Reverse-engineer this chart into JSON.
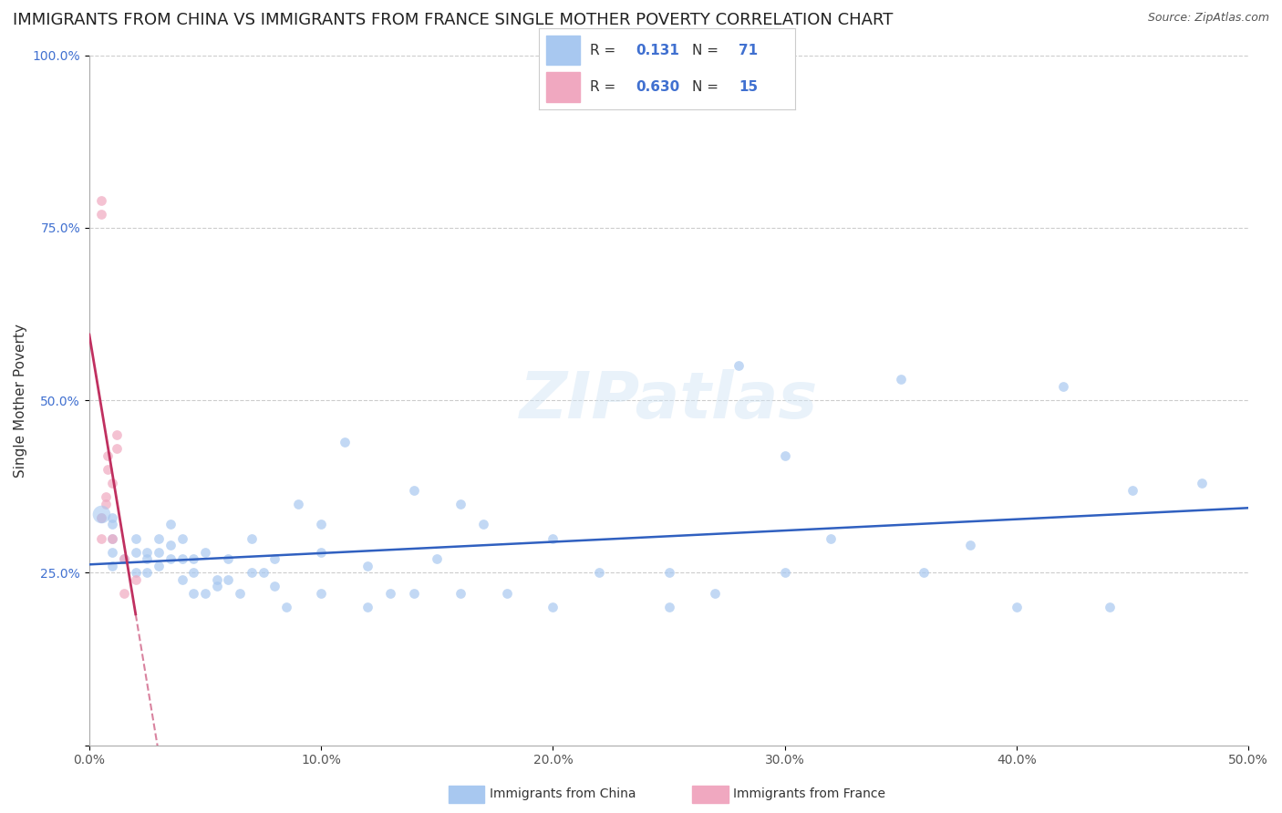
{
  "title": "IMMIGRANTS FROM CHINA VS IMMIGRANTS FROM FRANCE SINGLE MOTHER POVERTY CORRELATION CHART",
  "source": "Source: ZipAtlas.com",
  "xlabel_china": "Immigrants from China",
  "xlabel_france": "Immigrants from France",
  "ylabel": "Single Mother Poverty",
  "xlim": [
    0,
    0.5
  ],
  "ylim": [
    0,
    1.0
  ],
  "R_china": 0.131,
  "N_china": 71,
  "R_france": 0.63,
  "N_france": 15,
  "china_color": "#a8c8f0",
  "france_color": "#f0a8c0",
  "trendline_china_color": "#3060c0",
  "trendline_france_color": "#c03060",
  "china_scatter": [
    [
      0.01,
      0.32
    ],
    [
      0.01,
      0.28
    ],
    [
      0.01,
      0.26
    ],
    [
      0.01,
      0.3
    ],
    [
      0.01,
      0.33
    ],
    [
      0.015,
      0.27
    ],
    [
      0.02,
      0.28
    ],
    [
      0.02,
      0.25
    ],
    [
      0.02,
      0.3
    ],
    [
      0.025,
      0.25
    ],
    [
      0.025,
      0.28
    ],
    [
      0.025,
      0.27
    ],
    [
      0.03,
      0.26
    ],
    [
      0.03,
      0.3
    ],
    [
      0.03,
      0.28
    ],
    [
      0.035,
      0.29
    ],
    [
      0.035,
      0.27
    ],
    [
      0.035,
      0.32
    ],
    [
      0.04,
      0.27
    ],
    [
      0.04,
      0.3
    ],
    [
      0.04,
      0.24
    ],
    [
      0.045,
      0.27
    ],
    [
      0.045,
      0.22
    ],
    [
      0.045,
      0.25
    ],
    [
      0.05,
      0.28
    ],
    [
      0.05,
      0.22
    ],
    [
      0.055,
      0.24
    ],
    [
      0.055,
      0.23
    ],
    [
      0.06,
      0.27
    ],
    [
      0.06,
      0.24
    ],
    [
      0.065,
      0.22
    ],
    [
      0.07,
      0.3
    ],
    [
      0.07,
      0.25
    ],
    [
      0.075,
      0.25
    ],
    [
      0.08,
      0.23
    ],
    [
      0.08,
      0.27
    ],
    [
      0.085,
      0.2
    ],
    [
      0.09,
      0.35
    ],
    [
      0.1,
      0.22
    ],
    [
      0.1,
      0.28
    ],
    [
      0.1,
      0.32
    ],
    [
      0.11,
      0.44
    ],
    [
      0.12,
      0.26
    ],
    [
      0.12,
      0.2
    ],
    [
      0.13,
      0.22
    ],
    [
      0.14,
      0.37
    ],
    [
      0.14,
      0.22
    ],
    [
      0.15,
      0.27
    ],
    [
      0.16,
      0.35
    ],
    [
      0.16,
      0.22
    ],
    [
      0.17,
      0.32
    ],
    [
      0.18,
      0.22
    ],
    [
      0.2,
      0.2
    ],
    [
      0.2,
      0.3
    ],
    [
      0.22,
      0.25
    ],
    [
      0.25,
      0.2
    ],
    [
      0.25,
      0.25
    ],
    [
      0.27,
      0.22
    ],
    [
      0.28,
      0.55
    ],
    [
      0.3,
      0.42
    ],
    [
      0.3,
      0.25
    ],
    [
      0.32,
      0.3
    ],
    [
      0.35,
      0.53
    ],
    [
      0.36,
      0.25
    ],
    [
      0.38,
      0.29
    ],
    [
      0.4,
      0.2
    ],
    [
      0.42,
      0.52
    ],
    [
      0.44,
      0.2
    ],
    [
      0.45,
      0.37
    ],
    [
      0.48,
      0.38
    ],
    [
      0.005,
      0.33
    ]
  ],
  "france_scatter": [
    [
      0.005,
      0.79
    ],
    [
      0.005,
      0.77
    ],
    [
      0.005,
      0.33
    ],
    [
      0.005,
      0.3
    ],
    [
      0.007,
      0.36
    ],
    [
      0.007,
      0.35
    ],
    [
      0.008,
      0.42
    ],
    [
      0.008,
      0.4
    ],
    [
      0.01,
      0.38
    ],
    [
      0.01,
      0.3
    ],
    [
      0.012,
      0.45
    ],
    [
      0.012,
      0.43
    ],
    [
      0.015,
      0.27
    ],
    [
      0.015,
      0.22
    ],
    [
      0.02,
      0.24
    ]
  ],
  "china_dot_size": 60,
  "france_dot_size": 60,
  "watermark": "ZIPatlas",
  "background_color": "#ffffff",
  "grid_color": "#cccccc",
  "title_fontsize": 13,
  "label_fontsize": 11,
  "tick_fontsize": 10,
  "legend_R_color": "#333333",
  "legend_N_color": "#4070d0",
  "tick_color_y": "#4070d0",
  "tick_color_x": "#555555"
}
